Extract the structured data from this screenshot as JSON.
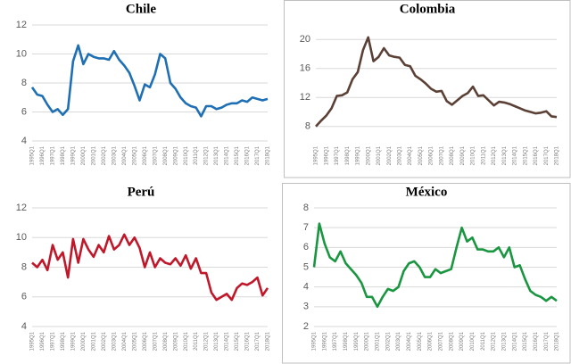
{
  "chart_data": [
    {
      "type": "line",
      "title": "Chile",
      "categories": [
        "1995Q1",
        null,
        "1996Q1",
        null,
        "1997Q1",
        null,
        "1998Q1",
        null,
        "1999Q1",
        null,
        "2000Q1",
        null,
        "2001Q1",
        null,
        "2002Q1",
        null,
        "2003Q1",
        null,
        "2004Q1",
        null,
        "2005Q1",
        null,
        "2006Q1",
        null,
        "2007Q1",
        null,
        "2008Q1",
        null,
        "2009Q1",
        null,
        "2010Q1",
        null,
        "2011Q1",
        null,
        "2012Q1",
        null,
        "2013Q1",
        null,
        "2014Q1",
        null,
        "2015Q1",
        null,
        "2016Q1",
        null,
        "2017Q1",
        null,
        "2018Q1"
      ],
      "values": [
        7.7,
        7.2,
        7.1,
        6.5,
        6.0,
        6.2,
        5.8,
        6.2,
        9.5,
        10.6,
        9.3,
        10.0,
        9.8,
        9.7,
        9.7,
        9.6,
        10.2,
        9.6,
        9.2,
        8.7,
        7.8,
        6.8,
        7.9,
        7.7,
        8.6,
        10.0,
        9.7,
        8.0,
        7.6,
        7.0,
        6.6,
        6.4,
        6.3,
        5.7,
        6.4,
        6.4,
        6.2,
        6.3,
        6.5,
        6.6,
        6.6,
        6.8,
        6.7,
        7.0,
        6.9,
        6.8,
        6.9
      ],
      "color": "#1f6fb5",
      "ylim": [
        4,
        12
      ],
      "yticks": [
        4,
        6,
        8,
        10,
        12
      ],
      "grid": true
    },
    {
      "type": "line",
      "title": "Colombia",
      "categories": [
        "1995Q1",
        null,
        "1996Q1",
        null,
        "1997Q1",
        null,
        "1998Q1",
        null,
        "1999Q1",
        null,
        "2000Q1",
        null,
        "2001Q1",
        null,
        "2002Q1",
        null,
        "2003Q1",
        null,
        "2004Q1",
        null,
        "2005Q1",
        null,
        "2006Q1",
        null,
        "2007Q1",
        null,
        "2008Q1",
        null,
        "2009Q1",
        null,
        "2010Q1",
        null,
        "2011Q1",
        null,
        "2012Q1",
        null,
        "2013Q1",
        null,
        "2014Q1",
        null,
        "2015Q1",
        null,
        "2016Q1",
        null,
        "2017Q1",
        null,
        "2018Q1"
      ],
      "values": [
        8.0,
        8.8,
        9.5,
        10.5,
        12.2,
        12.3,
        12.7,
        14.5,
        15.5,
        18.5,
        20.3,
        17.0,
        17.6,
        18.8,
        17.8,
        17.6,
        17.5,
        16.5,
        16.3,
        15.0,
        14.5,
        13.9,
        13.2,
        12.8,
        12.9,
        11.5,
        11.0,
        11.6,
        12.2,
        12.6,
        13.5,
        12.2,
        12.3,
        11.6,
        10.9,
        11.4,
        11.3,
        11.1,
        10.8,
        10.5,
        10.2,
        10.0,
        9.8,
        9.9,
        10.1,
        9.4,
        9.3
      ],
      "color": "#5b4036",
      "ylim": [
        6,
        22
      ],
      "yticks": [
        8,
        12,
        16,
        20
      ],
      "grid": true
    },
    {
      "type": "line",
      "title": "Perú",
      "categories": [
        "1995Q1",
        null,
        "1996Q1",
        null,
        "1997Q1",
        null,
        "1998Q1",
        null,
        "1999Q1",
        null,
        "2000Q1",
        null,
        "2001Q1",
        null,
        "2002Q1",
        null,
        "2003Q1",
        null,
        "2004Q1",
        null,
        "2005Q1",
        null,
        "2006Q1",
        null,
        "2007Q1",
        null,
        "2008Q1",
        null,
        "2009Q1",
        null,
        "2010Q1",
        null,
        "2011Q1",
        null,
        "2012Q1",
        null,
        "2013Q1",
        null,
        "2014Q1",
        null,
        "2015Q1",
        null,
        "2016Q1",
        null,
        "2017Q1",
        null,
        "2018Q1"
      ],
      "values": [
        8.3,
        8.0,
        8.5,
        7.8,
        9.5,
        8.5,
        9.0,
        7.3,
        9.9,
        8.3,
        9.9,
        9.2,
        8.7,
        9.5,
        9.0,
        10.1,
        9.2,
        9.5,
        10.2,
        9.5,
        10.0,
        9.3,
        8.0,
        9.0,
        8.0,
        8.6,
        8.3,
        8.2,
        8.6,
        8.1,
        8.8,
        7.9,
        8.6,
        7.6,
        7.6,
        6.3,
        5.8,
        6.0,
        6.2,
        5.8,
        6.6,
        6.9,
        6.8,
        7.0,
        7.3,
        6.1,
        6.6
      ],
      "color": "#c0182a",
      "ylim": [
        4,
        12
      ],
      "yticks": [
        4,
        6,
        8,
        10,
        12
      ],
      "grid": true
    },
    {
      "type": "line",
      "title": "México",
      "categories": [
        "1995Q1",
        null,
        "1996Q1",
        null,
        "1997Q1",
        null,
        "1998Q1",
        null,
        "1999Q1",
        null,
        "2000Q1",
        null,
        "2001Q1",
        null,
        "2002Q1",
        null,
        "2003Q1",
        null,
        "2004Q1",
        null,
        "2005Q1",
        null,
        "2006Q1",
        null,
        "2007Q1",
        null,
        "2008Q1",
        null,
        "2009Q1",
        null,
        "2010Q1",
        null,
        "2011Q1",
        null,
        "2012Q1",
        null,
        "2013Q1",
        null,
        "2014Q1",
        null,
        "2015Q1",
        null,
        "2016Q1",
        null,
        "2017Q1",
        null,
        "2018Q1"
      ],
      "values": [
        5.0,
        7.2,
        6.2,
        5.5,
        5.3,
        5.8,
        5.2,
        4.9,
        4.6,
        4.2,
        3.5,
        3.5,
        3.0,
        3.5,
        3.9,
        3.8,
        4.0,
        4.8,
        5.2,
        5.3,
        5.0,
        4.5,
        4.5,
        4.9,
        4.7,
        4.8,
        4.9,
        6.0,
        7.0,
        6.3,
        6.5,
        5.9,
        5.9,
        5.8,
        5.8,
        6.0,
        5.5,
        6.0,
        5.0,
        5.1,
        4.4,
        3.8,
        3.6,
        3.5,
        3.3,
        3.5,
        3.3
      ],
      "color": "#1a9641",
      "ylim": [
        2,
        8
      ],
      "yticks": [
        2,
        3,
        4,
        5,
        6,
        7,
        8
      ],
      "grid": true
    }
  ]
}
